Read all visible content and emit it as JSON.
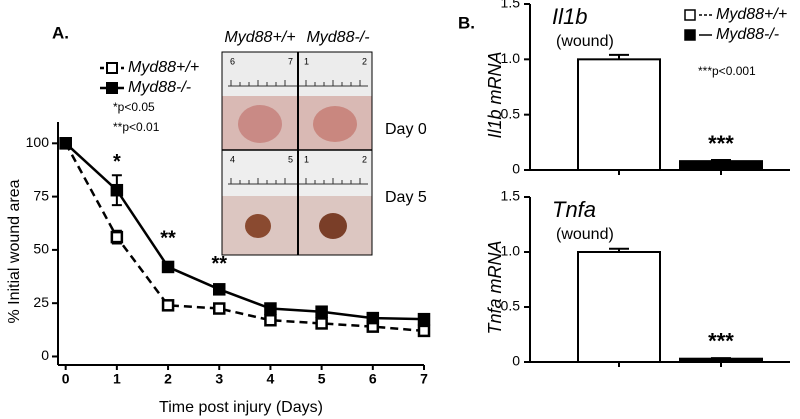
{
  "panel_labels": [
    "A.",
    "B."
  ],
  "image_panel": {
    "column_labels": [
      "Myd88+/+",
      "Myd88-/-"
    ],
    "row_labels": [
      "Day 0",
      "Day 5"
    ],
    "ruler_numbers": [
      [
        "6",
        "7",
        "1",
        "2"
      ],
      [
        "4",
        "5",
        "1",
        "2"
      ]
    ]
  },
  "chart_data": [
    {
      "type": "line",
      "xlabel": "Time post injury (Days)",
      "ylabel": "% Initial wound area",
      "x": [
        0,
        1,
        2,
        3,
        4,
        5,
        6,
        7
      ],
      "xlim": [
        -0.15,
        7
      ],
      "xticks": [
        0,
        1,
        2,
        3,
        4,
        5,
        6,
        7
      ],
      "ylim": [
        -4,
        110
      ],
      "yticks": [
        0,
        25,
        50,
        75,
        100
      ],
      "legend": "upper right",
      "notes": [
        "*p<0.05",
        "**p<0.01"
      ],
      "series": [
        {
          "name": "Myd88+/+",
          "color": "#000000",
          "dashed": true,
          "marker": "open-square",
          "values": [
            100,
            56,
            24,
            22.5,
            17,
            15.5,
            14,
            12
          ],
          "errors": [
            0,
            3,
            2,
            1.5,
            1.5,
            1.5,
            1.5,
            2
          ]
        },
        {
          "name": "Myd88-/-",
          "color": "#000000",
          "dashed": false,
          "marker": "filled-square",
          "values": [
            100,
            78,
            42,
            31.5,
            22.5,
            21,
            18,
            17.5
          ],
          "errors": [
            0,
            7,
            2,
            1.5,
            2,
            1.5,
            1.5,
            2
          ]
        }
      ],
      "annotations": [
        {
          "x": 1,
          "y": 91,
          "text": "*"
        },
        {
          "x": 2,
          "y": 55,
          "text": "**"
        },
        {
          "x": 3,
          "y": 43,
          "text": "**"
        }
      ]
    },
    {
      "type": "bar",
      "title": "Il1b",
      "subtitle": "(wound)",
      "ylabel": "Il1b mRNA",
      "ylim": [
        0,
        1.5
      ],
      "yticks": [
        0,
        0.5,
        {
          "value": 1,
          "label": "1.0"
        },
        1.5
      ],
      "legend": "upper right",
      "notes": [
        "***p<0.001"
      ],
      "series": [
        {
          "name": "Myd88+/+",
          "color": "#ffffff",
          "values": [
            1.0
          ],
          "errors": [
            0.04
          ]
        },
        {
          "name": "Myd88-/-",
          "color": "#000000",
          "values": [
            0.08
          ],
          "errors": [
            0.01
          ]
        }
      ],
      "annotations": [
        {
          "series": 1,
          "text": "***"
        }
      ]
    },
    {
      "type": "bar",
      "title": "Tnfa",
      "subtitle": "(wound)",
      "ylabel": "Tnfa mRNA",
      "ylim": [
        0,
        1.5
      ],
      "yticks": [
        0,
        0.5,
        {
          "value": 1,
          "label": "1.0"
        },
        1.5
      ],
      "series": [
        {
          "color": "#ffffff",
          "values": [
            1.0
          ],
          "errors": [
            0.03
          ]
        },
        {
          "color": "#000000",
          "values": [
            0.03
          ],
          "errors": [
            0.005
          ]
        }
      ],
      "annotations": [
        {
          "series": 1,
          "text": "***"
        }
      ]
    }
  ]
}
